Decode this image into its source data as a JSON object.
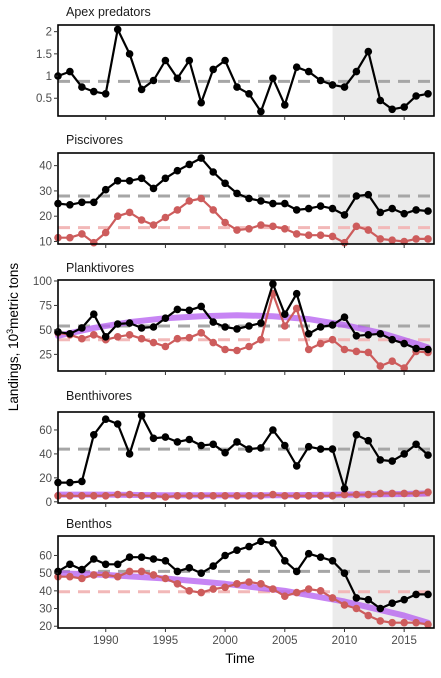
{
  "chart_data": {
    "type": "line",
    "xlabel": "Time",
    "ylabel_prefix": "Landings, 10",
    "ylabel_sup": "3",
    "ylabel_suffix": "metric tons",
    "x": [
      1986,
      1987,
      1988,
      1989,
      1990,
      1991,
      1992,
      1993,
      1994,
      1995,
      1996,
      1997,
      1998,
      1999,
      2000,
      2001,
      2002,
      2003,
      2004,
      2005,
      2006,
      2007,
      2008,
      2009,
      2010,
      2011,
      2012,
      2013,
      2014,
      2015,
      2016,
      2017
    ],
    "xlim": [
      1986,
      2017.5
    ],
    "x_ticks": [
      1990,
      1995,
      2000,
      2005,
      2010,
      2015
    ],
    "shaded_from": 2009,
    "colors": {
      "total": "#000000",
      "sub": "#cd5c5c",
      "mean_total": "#a6a6a6",
      "mean_sub": "#f2b8b8",
      "trend": "#b45cf0",
      "shade": "#ebebeb"
    },
    "panels": [
      {
        "title": "Apex predators",
        "ylim": [
          0.1,
          2.15
        ],
        "y_ticks": [
          0.5,
          1,
          1.5,
          2
        ],
        "series": [
          {
            "role": "total",
            "values": [
              1.0,
              1.1,
              0.75,
              0.65,
              0.6,
              2.05,
              1.5,
              0.7,
              0.9,
              1.35,
              0.95,
              1.35,
              0.4,
              1.15,
              1.35,
              0.75,
              0.6,
              0.2,
              0.95,
              0.35,
              1.2,
              1.1,
              0.9,
              0.8,
              0.75,
              1.1,
              1.55,
              0.45,
              0.25,
              0.3,
              0.55,
              0.6
            ]
          }
        ],
        "mean_lines": [
          {
            "role": "mean_total",
            "value": 0.88
          }
        ],
        "trend": null
      },
      {
        "title": "Piscivores",
        "ylim": [
          9,
          45
        ],
        "y_ticks": [
          10,
          20,
          30,
          40
        ],
        "series": [
          {
            "role": "total",
            "values": [
              25,
              24.5,
              25.5,
              25.5,
              30.5,
              34,
              34,
              35,
              31,
              35,
              38,
              40.5,
              43,
              37.5,
              33,
              29,
              27,
              26,
              25,
              25,
              22.5,
              23,
              24,
              23,
              20.5,
              28,
              28.5,
              21.5,
              23,
              21,
              22.5,
              22
            ]
          },
          {
            "role": "sub",
            "values": [
              11.5,
              11.5,
              13,
              9.5,
              13.5,
              20,
              21.5,
              18.5,
              16.5,
              19.5,
              22.5,
              26,
              27,
              22.5,
              17.5,
              14.5,
              15,
              16.5,
              16,
              15,
              13,
              12.5,
              12.5,
              12,
              9.5,
              16,
              14.5,
              11,
              10.5,
              10,
              11,
              11
            ]
          }
        ],
        "mean_lines": [
          {
            "role": "mean_total",
            "value": 28
          },
          {
            "role": "mean_sub",
            "value": 15.5
          }
        ],
        "trend": null
      },
      {
        "title": "Planktivores",
        "ylim": [
          8,
          101
        ],
        "y_ticks": [
          25,
          50,
          75,
          100
        ],
        "series": [
          {
            "role": "total",
            "values": [
              48,
              46,
              52,
              66,
              43,
              56,
              57,
              52,
              53,
              62,
              71,
              70,
              74,
              58,
              53,
              51,
              54,
              57,
              97,
              66,
              87,
              46,
              53,
              55,
              63,
              44,
              45,
              46,
              40,
              36,
              31,
              30
            ]
          },
          {
            "role": "sub",
            "values": [
              47,
              45,
              41,
              45,
              40,
              43,
              45,
              41,
              37,
              33,
              41,
              42,
              47,
              37,
              30,
              29,
              33,
              40,
              87,
              54,
              72,
              30,
              36,
              40,
              30,
              28,
              27,
              13,
              18,
              11,
              28,
              27
            ]
          }
        ],
        "mean_lines": [
          {
            "role": "mean_total",
            "value": 54
          },
          {
            "role": "mean_sub",
            "value": 40
          }
        ],
        "trend": {
          "x": [
            1986,
            1989,
            1992,
            1995,
            1998,
            2001,
            2004,
            2007,
            2010,
            2013,
            2016,
            2017
          ],
          "values": [
            44,
            52,
            58,
            62,
            64,
            65,
            64,
            61,
            55,
            47,
            36,
            32
          ]
        }
      },
      {
        "title": "Benthivores",
        "ylim": [
          -1,
          75
        ],
        "y_ticks": [
          0,
          20,
          40,
          60
        ],
        "series": [
          {
            "role": "total",
            "values": [
              16,
              16,
              17,
              56,
              69,
              65,
              40,
              72,
              53,
              54,
              50,
              52,
              47,
              48,
              41,
              50,
              44,
              45,
              60,
              47,
              30,
              46,
              44,
              44,
              11,
              56,
              51,
              35,
              34,
              40,
              48,
              39
            ]
          },
          {
            "role": "sub",
            "values": [
              5,
              5,
              5,
              5,
              5,
              6,
              6,
              5,
              5,
              4,
              5,
              5,
              5,
              5,
              5,
              5,
              5,
              5,
              6,
              5,
              5,
              5,
              5,
              5,
              6,
              6,
              6,
              7,
              7,
              7,
              7,
              8
            ]
          }
        ],
        "mean_lines": [
          {
            "role": "mean_total",
            "value": 44
          },
          {
            "role": "mean_sub",
            "value": 5.5
          }
        ],
        "trend": {
          "x": [
            1986,
            1990,
            1995,
            2000,
            2005,
            2010,
            2015,
            2017
          ],
          "values": [
            6,
            6,
            5.5,
            5.5,
            5.5,
            6,
            6.5,
            7
          ]
        }
      },
      {
        "title": "Benthos",
        "ylim": [
          19,
          71
        ],
        "y_ticks": [
          20,
          30,
          40,
          50,
          60
        ],
        "series": [
          {
            "role": "total",
            "values": [
              51,
              55,
              52,
              58,
              55,
              55,
              59,
              59,
              58,
              57,
              51,
              53,
              50,
              54,
              60,
              63,
              65,
              68,
              67,
              57,
              51,
              61,
              59,
              57,
              50,
              36,
              35,
              30,
              33,
              35,
              38,
              38
            ]
          },
          {
            "role": "sub",
            "values": [
              48,
              48,
              47,
              49,
              49,
              48,
              51,
              51,
              49,
              47,
              44,
              40,
              39,
              41,
              42,
              44,
              45,
              44,
              41,
              37,
              39,
              41,
              40,
              36,
              32,
              30,
              26,
              23,
              22,
              22,
              22,
              21
            ]
          }
        ],
        "mean_lines": [
          {
            "role": "mean_total",
            "value": 51
          },
          {
            "role": "mean_sub",
            "value": 39.5
          }
        ],
        "trend": {
          "x": [
            1986,
            1990,
            1995,
            2000,
            2005,
            2010,
            2015,
            2017
          ],
          "values": [
            50,
            49,
            47,
            44,
            40,
            34,
            26,
            22
          ]
        }
      }
    ]
  }
}
